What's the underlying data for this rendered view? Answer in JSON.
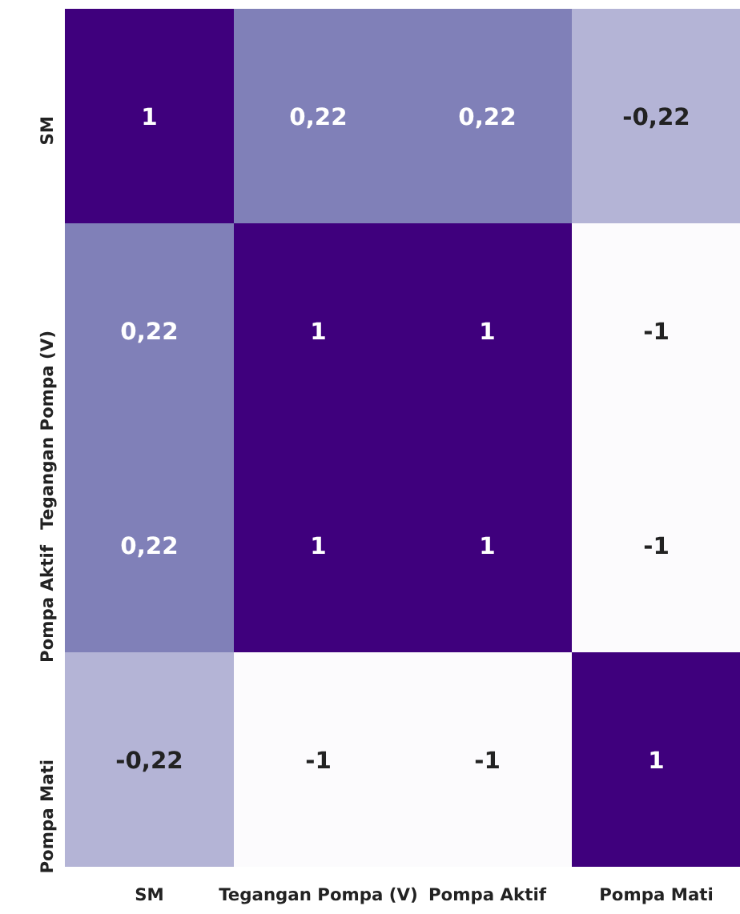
{
  "chart_data": {
    "type": "heatmap",
    "categories": [
      "SM",
      "Tegangan Pompa (V)",
      "Pompa Aktif",
      "Pompa Mati"
    ],
    "y_categories": [
      "SM",
      "Tegangan Pompa (V)",
      "Pompa Aktif",
      "Pompa Mati"
    ],
    "cells": [
      [
        1,
        0.22,
        0.22,
        -0.22
      ],
      [
        0.22,
        1,
        1,
        -1
      ],
      [
        0.22,
        1,
        1,
        -1
      ],
      [
        -0.22,
        -1,
        -1,
        1
      ]
    ],
    "cell_labels": [
      [
        "1",
        "0,22",
        "0,22",
        "-0,22"
      ],
      [
        "0,22",
        "1",
        "1",
        "-1"
      ],
      [
        "0,22",
        "1",
        "1",
        "-1"
      ],
      [
        "-0,22",
        "-1",
        "-1",
        "1"
      ]
    ]
  }
}
